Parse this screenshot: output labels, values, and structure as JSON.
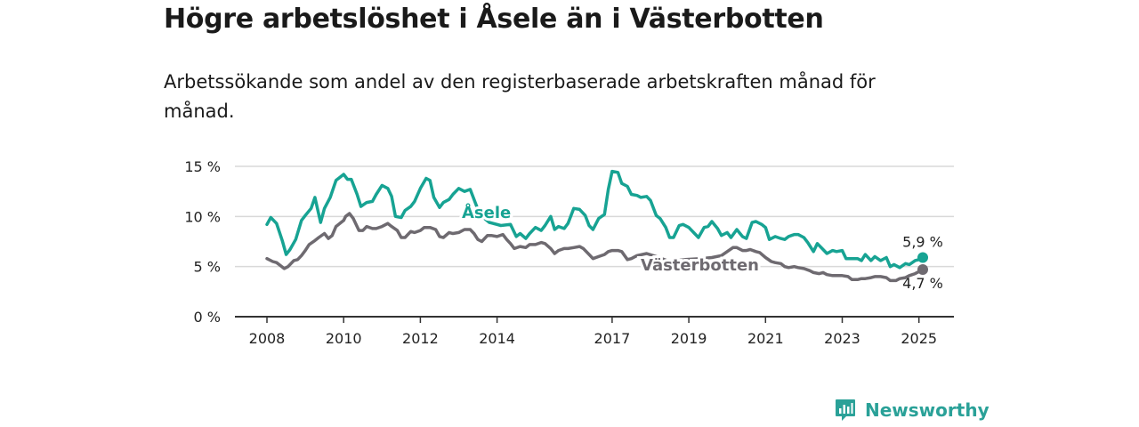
{
  "title": "Högre arbetslöshet i Åsele än i Västerbotten",
  "subtitle": "Arbetssökande som andel av den registerbaserade arbetskraften månad för månad.",
  "brand": {
    "name": "Newsworthy"
  },
  "colors": {
    "asele": "#17a393",
    "vasterbotten": "#6e6a70",
    "grid": "#d9d9d9",
    "axis": "#333333",
    "brand": "#2aa198"
  },
  "chart_data": {
    "type": "line",
    "title": "Högre arbetslöshet i Åsele än i Västerbotten",
    "ylim": [
      0,
      15
    ],
    "xlim": [
      2008,
      2025.6
    ],
    "y_ticks": [
      {
        "value": 15,
        "label": "15 %"
      },
      {
        "value": 10,
        "label": "10 %"
      },
      {
        "value": 5,
        "label": "5 %"
      },
      {
        "value": 0,
        "label": "0 %"
      }
    ],
    "x_ticks": [
      {
        "value": 2008,
        "label": "2008"
      },
      {
        "value": 2010,
        "label": "2010"
      },
      {
        "value": 2012,
        "label": "2012"
      },
      {
        "value": 2014,
        "label": "2014"
      },
      {
        "value": 2017,
        "label": "2017"
      },
      {
        "value": 2019,
        "label": "2019"
      },
      {
        "value": 2021,
        "label": "2021"
      },
      {
        "value": 2023,
        "label": "2023"
      },
      {
        "value": 2025,
        "label": "2025"
      }
    ],
    "grid": true,
    "series": [
      {
        "name": "Åsele",
        "end_label": "5,9 %",
        "points": [
          [
            2008.0,
            9.2
          ],
          [
            2008.1,
            9.9
          ],
          [
            2008.25,
            9.3
          ],
          [
            2008.4,
            7.6
          ],
          [
            2008.5,
            6.2
          ],
          [
            2008.6,
            6.7
          ],
          [
            2008.75,
            7.7
          ],
          [
            2008.9,
            9.6
          ],
          [
            2009.0,
            10.1
          ],
          [
            2009.15,
            10.8
          ],
          [
            2009.25,
            11.9
          ],
          [
            2009.4,
            9.4
          ],
          [
            2009.5,
            10.8
          ],
          [
            2009.65,
            11.9
          ],
          [
            2009.8,
            13.6
          ],
          [
            2010.0,
            14.2
          ],
          [
            2010.1,
            13.7
          ],
          [
            2010.2,
            13.7
          ],
          [
            2010.35,
            12.2
          ],
          [
            2010.45,
            11.0
          ],
          [
            2010.6,
            11.4
          ],
          [
            2010.75,
            11.5
          ],
          [
            2010.85,
            12.2
          ],
          [
            2011.0,
            13.1
          ],
          [
            2011.15,
            12.8
          ],
          [
            2011.25,
            12.0
          ],
          [
            2011.35,
            10.0
          ],
          [
            2011.5,
            9.9
          ],
          [
            2011.6,
            10.6
          ],
          [
            2011.75,
            11.0
          ],
          [
            2011.85,
            11.5
          ],
          [
            2012.0,
            12.8
          ],
          [
            2012.15,
            13.8
          ],
          [
            2012.25,
            13.6
          ],
          [
            2012.35,
            11.9
          ],
          [
            2012.5,
            10.9
          ],
          [
            2012.6,
            11.4
          ],
          [
            2012.75,
            11.7
          ],
          [
            2012.85,
            12.2
          ],
          [
            2013.0,
            12.8
          ],
          [
            2013.15,
            12.5
          ],
          [
            2013.3,
            12.7
          ],
          [
            2013.55,
            10.2
          ],
          [
            2013.8,
            9.4
          ],
          [
            2014.1,
            9.1
          ],
          [
            2014.35,
            9.2
          ],
          [
            2014.5,
            8.0
          ],
          [
            2014.6,
            8.3
          ],
          [
            2014.75,
            7.8
          ],
          [
            2014.85,
            8.3
          ],
          [
            2015.0,
            8.9
          ],
          [
            2015.15,
            8.6
          ],
          [
            2015.25,
            9.1
          ],
          [
            2015.4,
            10.0
          ],
          [
            2015.5,
            8.7
          ],
          [
            2015.6,
            9.0
          ],
          [
            2015.75,
            8.8
          ],
          [
            2015.85,
            9.3
          ],
          [
            2016.0,
            10.8
          ],
          [
            2016.15,
            10.7
          ],
          [
            2016.3,
            10.1
          ],
          [
            2016.4,
            9.1
          ],
          [
            2016.5,
            8.7
          ],
          [
            2016.65,
            9.8
          ],
          [
            2016.8,
            10.2
          ],
          [
            2016.9,
            12.7
          ],
          [
            2017.0,
            14.5
          ],
          [
            2017.15,
            14.4
          ],
          [
            2017.25,
            13.3
          ],
          [
            2017.4,
            13.0
          ],
          [
            2017.5,
            12.2
          ],
          [
            2017.65,
            12.1
          ],
          [
            2017.75,
            11.9
          ],
          [
            2017.9,
            12.0
          ],
          [
            2018.0,
            11.6
          ],
          [
            2018.15,
            10.1
          ],
          [
            2018.25,
            9.8
          ],
          [
            2018.4,
            8.9
          ],
          [
            2018.5,
            7.9
          ],
          [
            2018.6,
            7.9
          ],
          [
            2018.75,
            9.1
          ],
          [
            2018.85,
            9.2
          ],
          [
            2019.0,
            8.9
          ],
          [
            2019.15,
            8.3
          ],
          [
            2019.25,
            7.9
          ],
          [
            2019.4,
            8.9
          ],
          [
            2019.5,
            9.0
          ],
          [
            2019.6,
            9.5
          ],
          [
            2019.75,
            8.8
          ],
          [
            2019.85,
            8.1
          ],
          [
            2020.0,
            8.4
          ],
          [
            2020.1,
            7.9
          ],
          [
            2020.25,
            8.7
          ],
          [
            2020.4,
            8.0
          ],
          [
            2020.5,
            7.8
          ],
          [
            2020.65,
            9.4
          ],
          [
            2020.75,
            9.5
          ],
          [
            2020.9,
            9.2
          ],
          [
            2021.0,
            8.9
          ],
          [
            2021.1,
            7.7
          ],
          [
            2021.25,
            8.0
          ],
          [
            2021.4,
            7.8
          ],
          [
            2021.5,
            7.7
          ],
          [
            2021.6,
            8.0
          ],
          [
            2021.75,
            8.2
          ],
          [
            2021.85,
            8.2
          ],
          [
            2022.0,
            7.9
          ],
          [
            2022.1,
            7.4
          ],
          [
            2022.25,
            6.5
          ],
          [
            2022.35,
            7.3
          ],
          [
            2022.5,
            6.7
          ],
          [
            2022.6,
            6.3
          ],
          [
            2022.75,
            6.6
          ],
          [
            2022.85,
            6.5
          ],
          [
            2023.0,
            6.6
          ],
          [
            2023.1,
            5.8
          ],
          [
            2023.25,
            5.8
          ],
          [
            2023.4,
            5.8
          ],
          [
            2023.5,
            5.6
          ],
          [
            2023.6,
            6.2
          ],
          [
            2023.75,
            5.6
          ],
          [
            2023.85,
            6.0
          ],
          [
            2024.0,
            5.6
          ],
          [
            2024.15,
            5.9
          ],
          [
            2024.25,
            5.0
          ],
          [
            2024.35,
            5.2
          ],
          [
            2024.5,
            4.9
          ],
          [
            2024.65,
            5.3
          ],
          [
            2024.75,
            5.2
          ],
          [
            2024.9,
            5.6
          ],
          [
            2025.0,
            5.7
          ],
          [
            2025.1,
            5.9
          ]
        ]
      },
      {
        "name": "Västerbotten",
        "end_label": "4,7 %",
        "points": [
          [
            2008.0,
            5.8
          ],
          [
            2008.15,
            5.5
          ],
          [
            2008.25,
            5.4
          ],
          [
            2008.35,
            5.1
          ],
          [
            2008.45,
            4.8
          ],
          [
            2008.55,
            5.0
          ],
          [
            2008.7,
            5.6
          ],
          [
            2008.8,
            5.7
          ],
          [
            2008.9,
            6.1
          ],
          [
            2009.0,
            6.6
          ],
          [
            2009.1,
            7.2
          ],
          [
            2009.25,
            7.6
          ],
          [
            2009.35,
            7.9
          ],
          [
            2009.5,
            8.3
          ],
          [
            2009.6,
            7.8
          ],
          [
            2009.7,
            8.1
          ],
          [
            2009.8,
            9.0
          ],
          [
            2010.0,
            9.6
          ],
          [
            2010.05,
            10.0
          ],
          [
            2010.15,
            10.3
          ],
          [
            2010.25,
            9.8
          ],
          [
            2010.4,
            8.6
          ],
          [
            2010.5,
            8.6
          ],
          [
            2010.6,
            9.0
          ],
          [
            2010.75,
            8.8
          ],
          [
            2010.85,
            8.8
          ],
          [
            2011.0,
            9.0
          ],
          [
            2011.15,
            9.3
          ],
          [
            2011.25,
            9.0
          ],
          [
            2011.4,
            8.6
          ],
          [
            2011.5,
            7.9
          ],
          [
            2011.6,
            7.9
          ],
          [
            2011.75,
            8.5
          ],
          [
            2011.85,
            8.4
          ],
          [
            2012.0,
            8.6
          ],
          [
            2012.1,
            8.9
          ],
          [
            2012.25,
            8.9
          ],
          [
            2012.4,
            8.7
          ],
          [
            2012.5,
            8.0
          ],
          [
            2012.6,
            7.9
          ],
          [
            2012.75,
            8.4
          ],
          [
            2012.85,
            8.3
          ],
          [
            2013.0,
            8.4
          ],
          [
            2013.15,
            8.7
          ],
          [
            2013.3,
            8.7
          ],
          [
            2013.4,
            8.3
          ],
          [
            2013.5,
            7.7
          ],
          [
            2013.6,
            7.5
          ],
          [
            2013.75,
            8.1
          ],
          [
            2013.85,
            8.1
          ],
          [
            2014.0,
            8.0
          ],
          [
            2014.15,
            8.2
          ],
          [
            2014.25,
            7.7
          ],
          [
            2014.35,
            7.3
          ],
          [
            2014.45,
            6.8
          ],
          [
            2014.6,
            7.0
          ],
          [
            2014.75,
            6.9
          ],
          [
            2014.85,
            7.2
          ],
          [
            2015.0,
            7.2
          ],
          [
            2015.15,
            7.4
          ],
          [
            2015.25,
            7.3
          ],
          [
            2015.4,
            6.8
          ],
          [
            2015.5,
            6.3
          ],
          [
            2015.6,
            6.6
          ],
          [
            2015.75,
            6.8
          ],
          [
            2015.85,
            6.8
          ],
          [
            2016.0,
            6.9
          ],
          [
            2016.15,
            7.0
          ],
          [
            2016.25,
            6.8
          ],
          [
            2016.4,
            6.2
          ],
          [
            2016.5,
            5.8
          ],
          [
            2016.65,
            6.0
          ],
          [
            2016.8,
            6.2
          ],
          [
            2016.9,
            6.5
          ],
          [
            2017.0,
            6.6
          ],
          [
            2017.15,
            6.6
          ],
          [
            2017.25,
            6.5
          ],
          [
            2017.4,
            5.7
          ],
          [
            2017.5,
            5.8
          ],
          [
            2017.65,
            6.1
          ],
          [
            2017.9,
            6.3
          ],
          [
            2018.15,
            6.0
          ],
          [
            2018.5,
            5.5
          ],
          [
            2018.9,
            5.7
          ],
          [
            2019.3,
            5.8
          ],
          [
            2019.6,
            5.9
          ],
          [
            2019.85,
            6.1
          ],
          [
            2020.0,
            6.5
          ],
          [
            2020.15,
            6.9
          ],
          [
            2020.25,
            6.9
          ],
          [
            2020.4,
            6.6
          ],
          [
            2020.5,
            6.6
          ],
          [
            2020.6,
            6.7
          ],
          [
            2020.75,
            6.5
          ],
          [
            2020.85,
            6.4
          ],
          [
            2021.0,
            5.9
          ],
          [
            2021.15,
            5.5
          ],
          [
            2021.25,
            5.4
          ],
          [
            2021.4,
            5.3
          ],
          [
            2021.5,
            5.0
          ],
          [
            2021.6,
            4.9
          ],
          [
            2021.75,
            5.0
          ],
          [
            2021.85,
            4.9
          ],
          [
            2022.0,
            4.8
          ],
          [
            2022.15,
            4.6
          ],
          [
            2022.25,
            4.4
          ],
          [
            2022.4,
            4.3
          ],
          [
            2022.5,
            4.4
          ],
          [
            2022.6,
            4.2
          ],
          [
            2022.75,
            4.1
          ],
          [
            2022.85,
            4.1
          ],
          [
            2023.0,
            4.1
          ],
          [
            2023.15,
            4.0
          ],
          [
            2023.25,
            3.7
          ],
          [
            2023.4,
            3.7
          ],
          [
            2023.5,
            3.8
          ],
          [
            2023.6,
            3.8
          ],
          [
            2023.75,
            3.9
          ],
          [
            2023.85,
            4.0
          ],
          [
            2024.0,
            4.0
          ],
          [
            2024.15,
            3.9
          ],
          [
            2024.25,
            3.6
          ],
          [
            2024.4,
            3.6
          ],
          [
            2024.5,
            3.8
          ],
          [
            2024.65,
            3.9
          ],
          [
            2024.75,
            4.1
          ],
          [
            2024.9,
            4.3
          ],
          [
            2025.0,
            4.5
          ],
          [
            2025.1,
            4.7
          ]
        ]
      }
    ]
  }
}
